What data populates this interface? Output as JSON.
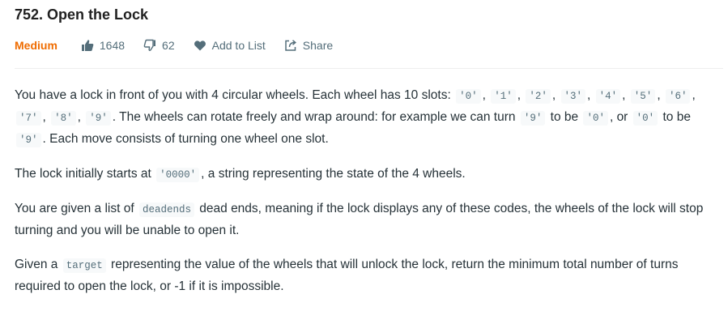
{
  "problem": {
    "title": "752. Open the Lock",
    "difficulty": "Medium",
    "likes": "1648",
    "dislikes": "62",
    "add_to_list_label": "Add to List",
    "share_label": "Share"
  },
  "description": {
    "p1": {
      "t1": "You have a lock in front of you with 4 circular wheels. Each wheel has 10 slots: ",
      "c0": "'0'",
      "s0": ", ",
      "c1": "'1'",
      "s1": ", ",
      "c2": "'2'",
      "s2": ", ",
      "c3": "'3'",
      "s3": ", ",
      "c4": "'4'",
      "s4": ", ",
      "c5": "'5'",
      "s5": ", ",
      "c6": "'6'",
      "s6": ", ",
      "c7": "'7'",
      "s7": ", ",
      "c8": "'8'",
      "s8": ", ",
      "c9": "'9'",
      "t2": ". The wheels can rotate freely and wrap around: for example we can turn ",
      "c10": "'9'",
      "t3": " to be ",
      "c11": "'0'",
      "t4": ", or ",
      "c12": "'0'",
      "t5": " to be ",
      "c13": "'9'",
      "t6": ". Each move consists of turning one wheel one slot."
    },
    "p2": {
      "t1": "The lock initially starts at ",
      "c1": "'0000'",
      "t2": ", a string representing the state of the 4 wheels."
    },
    "p3": {
      "t1": "You are given a list of ",
      "c1": "deadends",
      "t2": " dead ends, meaning if the lock displays any of these codes, the wheels of the lock will stop turning and you will be unable to open it."
    },
    "p4": {
      "t1": "Given a ",
      "c1": "target",
      "t2": " representing the value of the wheels that will unlock the lock, return the minimum total number of turns required to open the lock, or -1 if it is impossible."
    }
  },
  "colors": {
    "difficulty_medium": "#ef6c00",
    "meta_text": "#546e7a",
    "code_bg": "#f7f9fa"
  },
  "icons": {
    "like": "thumbs-up-icon",
    "dislike": "thumbs-down-icon",
    "add_to_list": "heart-icon",
    "share": "share-icon"
  }
}
